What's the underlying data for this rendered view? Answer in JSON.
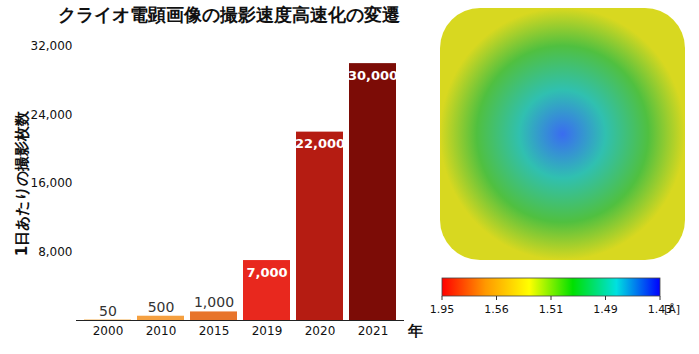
{
  "chart_data": [
    {
      "type": "bar",
      "title": "クライオ電顕画像の撮影速度高速化の変遷",
      "ylabel": "1日あたりの撮影枚数",
      "xlabel": "年",
      "categories": [
        "2000",
        "2010",
        "2015",
        "2019",
        "2020",
        "2021"
      ],
      "values": [
        50,
        500,
        1000,
        7000,
        22000,
        30000
      ],
      "value_labels": [
        "50",
        "500",
        "1,000",
        "7,000",
        "22,000",
        "30,000"
      ],
      "data_labels": true,
      "colors": [
        "#f2a33a",
        "#f5a040",
        "#e8742a",
        "#e8281e",
        "#b51c12",
        "#7c0c06"
      ],
      "ylim": [
        0,
        32000
      ],
      "yticks": [
        {
          "value": 8000,
          "label": "8,000"
        },
        {
          "value": 16000,
          "label": "16,000"
        },
        {
          "value": 24000,
          "label": "24,000"
        },
        {
          "value": 32000,
          "label": "32,000"
        }
      ],
      "grid": false
    },
    {
      "type": "colorbar",
      "xlabel": "[Å]",
      "xticks": [
        1.95,
        1.56,
        1.51,
        1.49,
        1.43
      ],
      "colors": [
        "#ff0000",
        "#ff9900",
        "#ffff00",
        "#00e000",
        "#00e0e0",
        "#0000ff"
      ]
    }
  ]
}
